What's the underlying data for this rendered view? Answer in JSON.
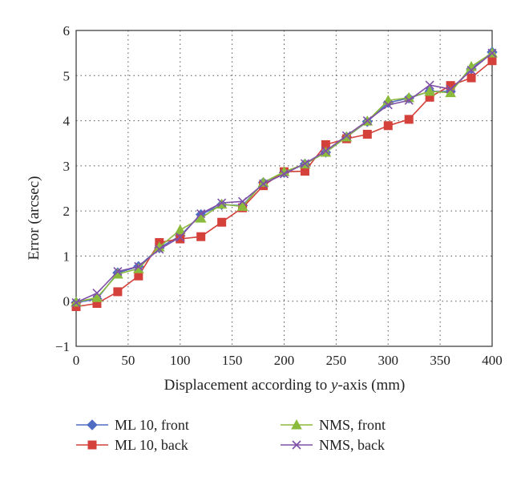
{
  "chart_data": {
    "type": "line",
    "xlabel_prefix": "Displacement according to ",
    "xlabel_var": "y",
    "xlabel_suffix": "-axis (mm)",
    "ylabel": "Error (arcsec)",
    "xlim": [
      0,
      400
    ],
    "ylim": [
      -1,
      6
    ],
    "xticks": [
      0,
      50,
      100,
      150,
      200,
      250,
      300,
      350,
      400
    ],
    "yticks": [
      -1,
      0,
      1,
      2,
      3,
      4,
      5,
      6
    ],
    "grid": true,
    "legend_position": "bottom",
    "x": [
      0,
      20,
      40,
      60,
      80,
      100,
      120,
      140,
      160,
      180,
      200,
      220,
      240,
      260,
      280,
      300,
      320,
      340,
      360,
      380,
      400
    ],
    "series": [
      {
        "name": "ML 10, front",
        "color": "#4f6cc2",
        "marker": "diamond",
        "values": [
          -0.03,
          0.05,
          0.63,
          0.77,
          1.18,
          1.45,
          1.92,
          2.14,
          2.12,
          2.63,
          2.85,
          3.04,
          3.3,
          3.64,
          3.98,
          4.4,
          4.5,
          4.65,
          4.65,
          5.15,
          5.52
        ]
      },
      {
        "name": "ML 10, back",
        "color": "#d4403a",
        "marker": "square",
        "values": [
          -0.12,
          -0.05,
          0.21,
          0.56,
          1.3,
          1.38,
          1.43,
          1.75,
          2.07,
          2.56,
          2.87,
          2.88,
          3.47,
          3.6,
          3.7,
          3.89,
          4.03,
          4.52,
          4.78,
          4.95,
          5.33
        ]
      },
      {
        "name": "NMS, front",
        "color": "#8bbb3c",
        "marker": "triangle",
        "values": [
          -0.02,
          0.08,
          0.6,
          0.72,
          1.2,
          1.58,
          1.84,
          2.15,
          2.1,
          2.63,
          2.87,
          3.04,
          3.3,
          3.64,
          3.99,
          4.45,
          4.51,
          4.65,
          4.62,
          5.2,
          5.5
        ]
      },
      {
        "name": "NMS, back",
        "color": "#8050a8",
        "marker": "x",
        "values": [
          -0.03,
          0.18,
          0.66,
          0.77,
          1.15,
          1.42,
          1.94,
          2.18,
          2.21,
          2.6,
          2.82,
          3.05,
          3.33,
          3.67,
          4.0,
          4.35,
          4.45,
          4.79,
          4.7,
          5.12,
          5.5
        ]
      }
    ]
  }
}
